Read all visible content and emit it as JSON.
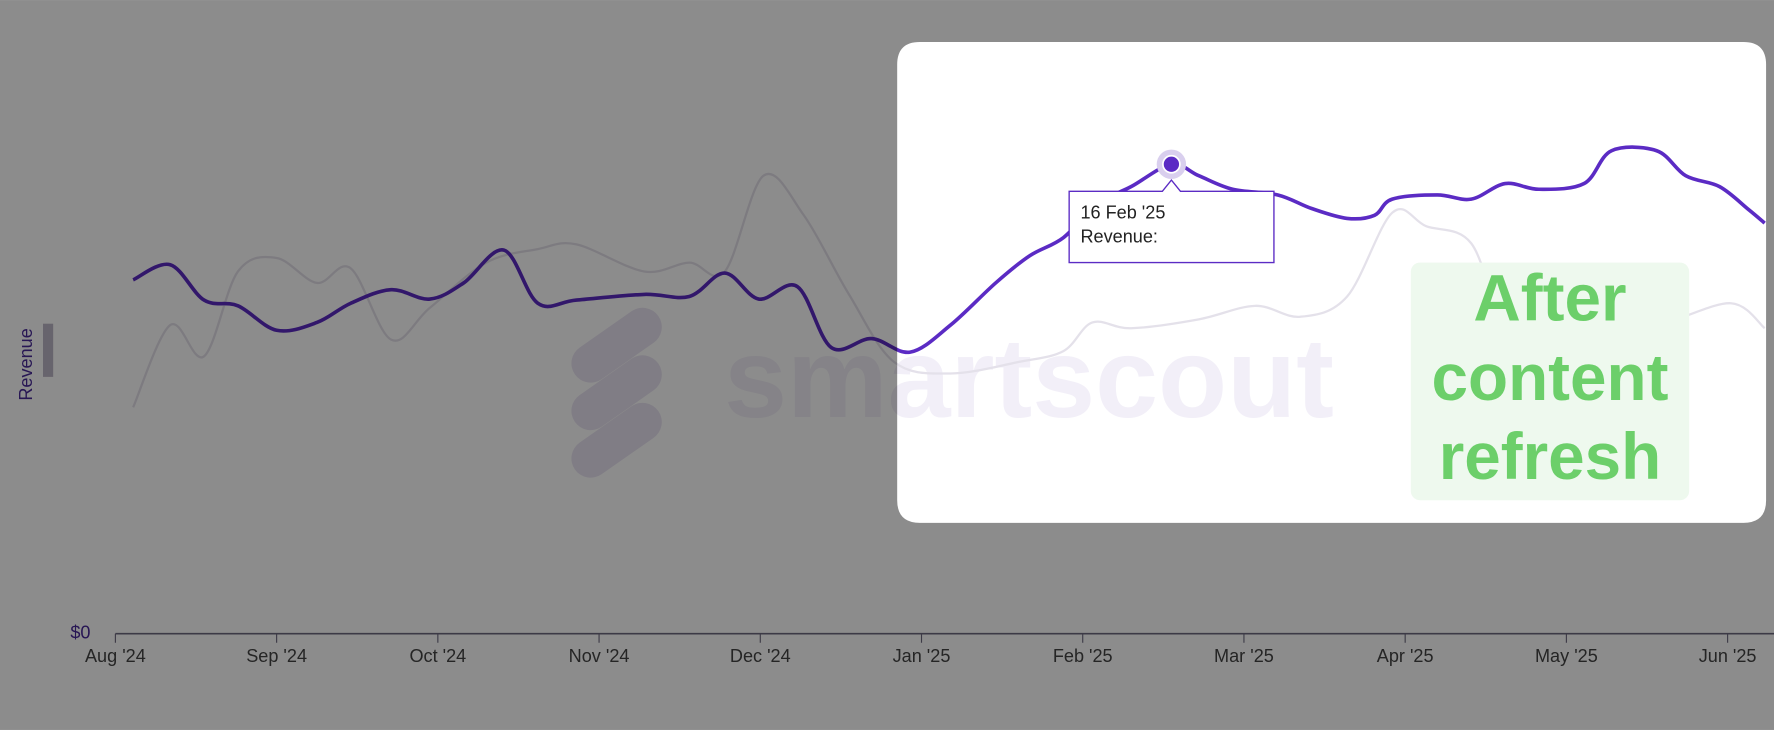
{
  "chart_data": {
    "type": "line",
    "y_label": "Revenue",
    "watermark": "smartscout",
    "annotation": [
      "After",
      "content",
      "refresh"
    ],
    "tooltip": {
      "date": "16 Feb '25",
      "label": "Revenue:"
    },
    "xlim": [
      0,
      10.29
    ],
    "ylim": [
      0,
      100
    ],
    "yticks": [
      {
        "value": 0,
        "label": "$0"
      }
    ],
    "xticks": [
      {
        "value": 0,
        "label": "Aug '24"
      },
      {
        "value": 1,
        "label": "Sep '24"
      },
      {
        "value": 2,
        "label": "Oct '24"
      },
      {
        "value": 3,
        "label": "Nov '24"
      },
      {
        "value": 4,
        "label": "Dec '24"
      },
      {
        "value": 5,
        "label": "Jan '25"
      },
      {
        "value": 6,
        "label": "Feb '25"
      },
      {
        "value": 7,
        "label": "Mar '25"
      },
      {
        "value": 8,
        "label": "Apr '25"
      },
      {
        "value": 9,
        "label": "May '25"
      },
      {
        "value": 10,
        "label": "Jun '25"
      }
    ],
    "series": [
      {
        "color": "#5b2bc4",
        "x": [
          0.11,
          0.34,
          0.55,
          0.76,
          1.0,
          1.25,
          1.46,
          1.71,
          1.95,
          2.16,
          2.41,
          2.62,
          2.86,
          3.28,
          3.56,
          3.78,
          3.99,
          4.23,
          4.44,
          4.69,
          4.93,
          5.18,
          5.46,
          5.67,
          5.88,
          6.09,
          6.3,
          6.55,
          6.72,
          6.93,
          7.21,
          7.42,
          7.64,
          7.81,
          7.92,
          8.2,
          8.41,
          8.62,
          8.83,
          9.11,
          9.28,
          9.56,
          9.74,
          9.95,
          10.13,
          10.23
        ],
        "values": [
          68.0,
          70.9,
          64.1,
          63.0,
          58.3,
          59.8,
          63.5,
          66.1,
          64.3,
          67.4,
          73.7,
          63.5,
          64.1,
          65.2,
          64.8,
          69.3,
          64.3,
          66.7,
          55.0,
          56.7,
          54.1,
          59.3,
          67.4,
          72.6,
          76.1,
          82.6,
          85.9,
          90.2,
          88.0,
          85.4,
          84.3,
          81.7,
          79.8,
          80.4,
          83.5,
          84.3,
          83.5,
          86.5,
          85.4,
          86.5,
          92.8,
          92.8,
          88.0,
          85.9,
          81.5,
          78.9
        ]
      },
      {
        "color": "#e4e1ea",
        "x": [
          0.11,
          0.34,
          0.55,
          0.76,
          1.0,
          1.25,
          1.46,
          1.71,
          1.95,
          2.3,
          2.62,
          2.86,
          3.28,
          3.56,
          3.78,
          4.02,
          4.27,
          4.55,
          4.83,
          5.18,
          5.6,
          5.88,
          6.06,
          6.3,
          6.72,
          7.07,
          7.35,
          7.64,
          7.92,
          8.13,
          8.41,
          8.62,
          8.83,
          9.25,
          9.6,
          10.02,
          10.23
        ],
        "values": [
          43.5,
          59.3,
          53.3,
          69.6,
          72.2,
          67.4,
          70.2,
          56.5,
          62.6,
          71.3,
          73.9,
          74.8,
          69.6,
          71.3,
          69.6,
          88.0,
          80.4,
          65.2,
          52.2,
          50.0,
          52.2,
          54.3,
          59.8,
          58.7,
          60.4,
          63.0,
          60.9,
          64.8,
          80.9,
          78.3,
          75.0,
          58.7,
          59.8,
          59.8,
          59.8,
          63.5,
          58.7
        ]
      }
    ]
  }
}
